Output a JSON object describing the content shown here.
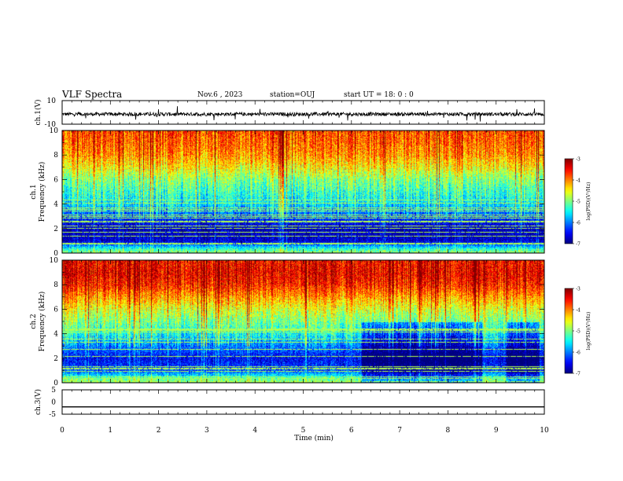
{
  "header": {
    "title": "VLF Spectra",
    "date": "Nov.6 , 2023",
    "station": "station=OUJ",
    "start_ut": "start UT = 18: 0 : 0"
  },
  "colors": {
    "spectrogram_scale": [
      "#00007f",
      "#0000ff",
      "#007fff",
      "#00ffff",
      "#7fff7f",
      "#ffff00",
      "#ff7f00",
      "#ff0000",
      "#7f0000"
    ]
  },
  "chart_data": [
    {
      "type": "line",
      "id": "ch1-waveform",
      "ylabel": "ch.1(V)",
      "ylim": [
        -10,
        10
      ],
      "y_ticks": [
        "10",
        "-10"
      ],
      "x": [
        0,
        10
      ],
      "baseline": -1.5,
      "note_series": "noisy broadband waveform around -1.5 V with spikes"
    },
    {
      "type": "heatmap",
      "id": "ch1-spectrogram",
      "ylabel_top": "ch.1",
      "ylabel": "Frequency (kHz)",
      "ylim": [
        0,
        10
      ],
      "y_ticks": [
        "0",
        "2",
        "4",
        "6",
        "8",
        "10"
      ],
      "xlim": [
        0,
        10
      ],
      "colorbar": {
        "label": "log(PSD)(V²/Hz)",
        "range": [
          -7,
          -3
        ],
        "ticks": [
          "-3",
          "-4",
          "-5",
          "-6",
          "-7"
        ]
      },
      "band_profile_log_psd": [
        {
          "freq_khz": 0.3,
          "value": -5.2
        },
        {
          "freq_khz": 1.0,
          "value": -6.7
        },
        {
          "freq_khz": 2.0,
          "value": -6.8
        },
        {
          "freq_khz": 3.0,
          "value": -6.2
        },
        {
          "freq_khz": 4.0,
          "value": -5.6
        },
        {
          "freq_khz": 5.0,
          "value": -5.3
        },
        {
          "freq_khz": 6.0,
          "value": -5.0
        },
        {
          "freq_khz": 7.0,
          "value": -4.5
        },
        {
          "freq_khz": 8.0,
          "value": -4.1
        },
        {
          "freq_khz": 9.0,
          "value": -3.9
        },
        {
          "freq_khz": 10.0,
          "value": -3.8
        }
      ]
    },
    {
      "type": "heatmap",
      "id": "ch2-spectrogram",
      "ylabel_top": "ch.2",
      "ylabel": "Frequency (kHz)",
      "ylim": [
        0,
        10
      ],
      "y_ticks": [
        "0",
        "2",
        "4",
        "6",
        "8",
        "10"
      ],
      "xlim": [
        0,
        10
      ],
      "colorbar": {
        "label": "log(PSD)(V²/Hz)",
        "range": [
          -7,
          -3
        ],
        "ticks": [
          "-3",
          "-4",
          "-5",
          "-6",
          "-7"
        ]
      },
      "band_profile_log_psd": [
        {
          "freq_khz": 0.3,
          "value": -5.0
        },
        {
          "freq_khz": 1.0,
          "value": -6.2
        },
        {
          "freq_khz": 2.0,
          "value": -6.5
        },
        {
          "freq_khz": 3.0,
          "value": -6.0
        },
        {
          "freq_khz": 4.0,
          "value": -5.4
        },
        {
          "freq_khz": 5.0,
          "value": -5.0
        },
        {
          "freq_khz": 6.0,
          "value": -4.6
        },
        {
          "freq_khz": 7.0,
          "value": -4.1
        },
        {
          "freq_khz": 8.0,
          "value": -3.6
        },
        {
          "freq_khz": 9.0,
          "value": -3.4
        },
        {
          "freq_khz": 10.0,
          "value": -3.5
        }
      ]
    },
    {
      "type": "line",
      "id": "ch3-waveform",
      "ylabel": "ch.3(V)",
      "ylim": [
        -5,
        5
      ],
      "y_ticks": [
        "5",
        "0",
        "-5"
      ],
      "x": [
        0,
        10
      ],
      "y": [
        -2,
        -2
      ]
    }
  ],
  "x_axis": {
    "label": "Time (min)",
    "ticks": [
      "0",
      "1",
      "2",
      "3",
      "4",
      "5",
      "6",
      "7",
      "8",
      "9",
      "10"
    ]
  }
}
